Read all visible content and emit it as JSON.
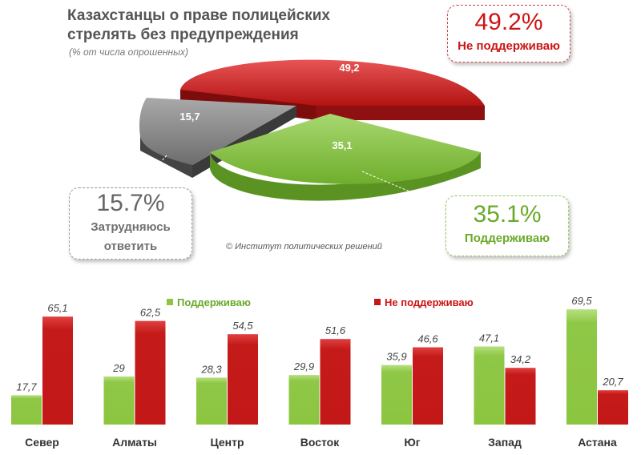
{
  "title": "Казахстанцы о праве полицейских стрелять без предупреждения",
  "subtitle": "(% от числа опрошенных)",
  "credit": "© Институт политических решений",
  "colors": {
    "support": "#8cc63f",
    "oppose": "#c31818",
    "undecided": "#7a7a7a"
  },
  "callouts": {
    "oppose": {
      "pct": "49.2%",
      "label": "Не поддерживаю"
    },
    "undecided": {
      "pct": "15.7%",
      "label_line1": "Затрудняюсь",
      "label_line2": "ответить"
    },
    "support": {
      "pct": "35.1%",
      "label": "Поддерживаю"
    }
  },
  "chart_data": [
    {
      "type": "pie",
      "title": "Казахстанцы о праве полицейских стрелять без предупреждения",
      "subtitle": "(% от числа опрошенных)",
      "slices": [
        {
          "label": "Не поддерживаю",
          "value": 49.2,
          "value_label": "49,2",
          "color": "#c31818"
        },
        {
          "label": "Поддерживаю",
          "value": 35.1,
          "value_label": "35,1",
          "color": "#8cc63f"
        },
        {
          "label": "Затрудняюсь ответить",
          "value": 15.7,
          "value_label": "15,7",
          "color": "#7a7a7a"
        }
      ]
    },
    {
      "type": "bar",
      "categories": [
        "Север",
        "Алматы",
        "Центр",
        "Восток",
        "Юг",
        "Запад",
        "Астана"
      ],
      "series": [
        {
          "name": "Поддерживаю",
          "color": "#8cc63f",
          "values": [
            17.7,
            29,
            28.3,
            29.9,
            35.9,
            47.1,
            69.5
          ],
          "labels": [
            "17,7",
            "29",
            "28,3",
            "29,9",
            "35,9",
            "47,1",
            "69,5"
          ]
        },
        {
          "name": "Не поддерживаю",
          "color": "#c31818",
          "values": [
            65.1,
            62.5,
            54.5,
            51.6,
            46.6,
            34.2,
            20.7
          ],
          "labels": [
            "65,1",
            "62,5",
            "54,5",
            "51,6",
            "46,6",
            "34,2",
            "20,7"
          ]
        }
      ],
      "legend": "top"
    }
  ]
}
